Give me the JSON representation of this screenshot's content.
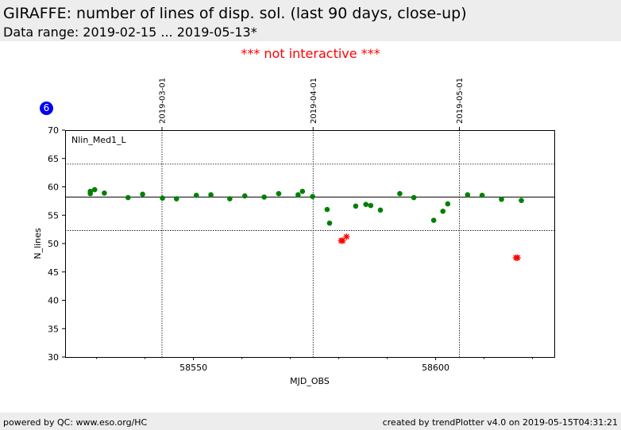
{
  "header": {
    "title": "GIRAFFE: number of lines of disp. sol. (last 90 days, close-up)",
    "subtitle": "Data range: 2019-02-15 ... 2019-05-13*"
  },
  "notice": "*** not interactive ***",
  "badge": "6",
  "footer": {
    "left": "powered by QC: www.eso.org/HC",
    "right": "created by trendPlotter v4.0 on 2019-05-15T04:31:21"
  },
  "chart_data": {
    "type": "scatter",
    "title": "",
    "xlabel": "MJD_OBS",
    "ylabel": "N_lines",
    "panel_label": "Nlin_Med1_L",
    "xlim": [
      58523.5,
      58624.5
    ],
    "ylim": [
      30,
      70
    ],
    "xticks": [
      58550,
      58600
    ],
    "yticks": [
      30,
      35,
      40,
      45,
      50,
      55,
      60,
      65,
      70
    ],
    "date_markers": [
      {
        "label": "2019-03-01",
        "x": 58543.5
      },
      {
        "label": "2019-04-01",
        "x": 58574.7
      },
      {
        "label": "2019-05-01",
        "x": 58604.9
      }
    ],
    "reference_lines": {
      "median": 58.2,
      "upper": 64.0,
      "lower": 52.3
    },
    "colors": {
      "ok": "#008000",
      "outlier": "#ff0000"
    },
    "series": [
      {
        "marker": "circle",
        "color": "#008000",
        "points": [
          [
            58528.7,
            58.8
          ],
          [
            58528.7,
            59.2
          ],
          [
            58529.6,
            59.5
          ],
          [
            58531.6,
            58.9
          ],
          [
            58536.5,
            58.1
          ],
          [
            58539.5,
            58.7
          ],
          [
            58543.6,
            58.0
          ],
          [
            58546.5,
            57.9
          ],
          [
            58550.6,
            58.5
          ],
          [
            58553.6,
            58.6
          ],
          [
            58557.5,
            57.9
          ],
          [
            58560.6,
            58.4
          ],
          [
            58564.6,
            58.2
          ],
          [
            58567.6,
            58.8
          ],
          [
            58571.6,
            58.6
          ],
          [
            58572.5,
            59.2
          ],
          [
            58574.6,
            58.3
          ],
          [
            58577.6,
            56.0
          ],
          [
            58578.1,
            53.6
          ],
          [
            58583.5,
            56.6
          ],
          [
            58585.6,
            56.9
          ],
          [
            58586.6,
            56.7
          ],
          [
            58588.6,
            55.9
          ],
          [
            58592.6,
            58.8
          ],
          [
            58595.5,
            58.1
          ],
          [
            58599.6,
            54.1
          ],
          [
            58601.5,
            55.7
          ],
          [
            58602.5,
            57.0
          ],
          [
            58606.6,
            58.6
          ],
          [
            58609.6,
            58.5
          ],
          [
            58613.6,
            57.8
          ],
          [
            58617.7,
            57.6
          ]
        ]
      },
      {
        "marker": "asterisk",
        "color": "#ff0000",
        "points": [
          [
            58580.5,
            50.5
          ],
          [
            58580.8,
            50.5
          ],
          [
            58581.6,
            51.2
          ],
          [
            58616.6,
            47.5
          ],
          [
            58616.9,
            47.5
          ]
        ]
      }
    ]
  }
}
